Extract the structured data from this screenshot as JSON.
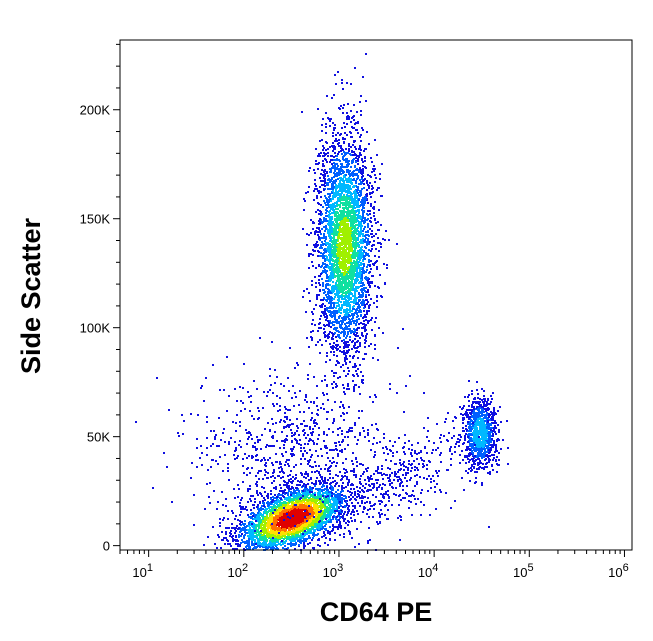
{
  "chart_data": {
    "type": "scatter",
    "style": "flow-cytometry density dot plot",
    "title": "",
    "xlabel": "CD64 PE",
    "ylabel": "Side Scatter",
    "x_scale": "log",
    "xlim": [
      5,
      1200000
    ],
    "ylim": [
      -2000,
      232000
    ],
    "x_ticks": [
      {
        "value": 10,
        "base": "10",
        "exp": "1"
      },
      {
        "value": 100,
        "base": "10",
        "exp": "2"
      },
      {
        "value": 1000,
        "base": "10",
        "exp": "3"
      },
      {
        "value": 10000,
        "base": "10",
        "exp": "4"
      },
      {
        "value": 100000,
        "base": "10",
        "exp": "5"
      },
      {
        "value": 1000000,
        "base": "10",
        "exp": "6"
      }
    ],
    "y_ticks": [
      {
        "value": 0,
        "label": "0"
      },
      {
        "value": 50000,
        "label": "50K"
      },
      {
        "value": 100000,
        "label": "100K"
      },
      {
        "value": 150000,
        "label": "150K"
      },
      {
        "value": 200000,
        "label": "200K"
      }
    ],
    "density_colors": [
      "#1010e0",
      "#0060ff",
      "#00b8ff",
      "#10e0a0",
      "#a0f000",
      "#ffe000",
      "#ff7000",
      "#e00000"
    ],
    "populations": [
      {
        "name": "",
        "log_x_center": 2.5,
        "log_x_sd": 0.28,
        "y_center": 13000,
        "y_sd": 6500,
        "fraction": 0.36,
        "peak_density": 1.0
      },
      {
        "name": "",
        "log_x_center": 3.05,
        "log_x_sd": 0.15,
        "y_center": 138000,
        "y_sd": 25000,
        "fraction": 0.4,
        "peak_density": 0.55
      },
      {
        "name": "",
        "log_x_center": 4.47,
        "log_x_sd": 0.09,
        "y_center": 52000,
        "y_sd": 8000,
        "fraction": 0.1,
        "peak_density": 0.35
      },
      {
        "name": "",
        "log_x_center": 2.5,
        "log_x_sd": 0.55,
        "y_center": 40000,
        "y_sd": 20000,
        "fraction": 0.1,
        "peak_density": 0.1
      },
      {
        "name": "",
        "log_x_center": 3.6,
        "log_x_sd": 0.4,
        "y_center": 30000,
        "y_sd": 10000,
        "fraction": 0.04,
        "peak_density": 0.1
      }
    ]
  }
}
